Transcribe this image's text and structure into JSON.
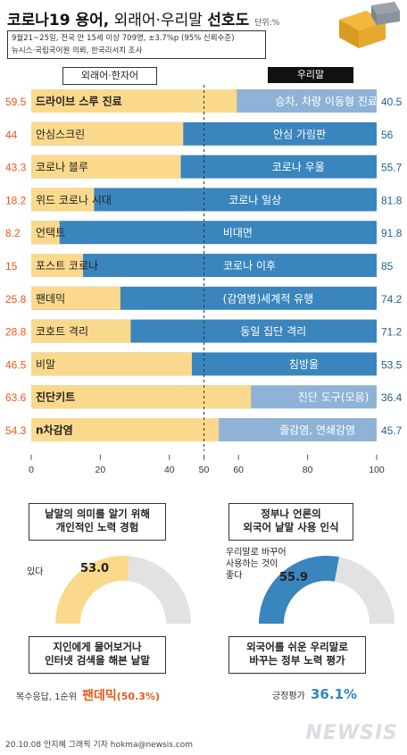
{
  "header": {
    "title_main": "코로나19 용어,",
    "title_sub": " 외래어·우리말 ",
    "title_end": "선호도",
    "unit": "단위:%",
    "info_line1": "9월21~25일, 전국 만 15세 이상 709명, ±3.7%p (95% 신뢰수준)",
    "info_line2": "뉴시스·국립국어원 의뢰, 한국리서치 조사"
  },
  "legend": {
    "left": "외래어·한자어",
    "right": "우리말"
  },
  "colors": {
    "foreign": "#fbd98c",
    "korean": "#3a85bd",
    "korean_light": "#8fb3d6",
    "accent": "#e8591a",
    "donut_bg": "#e2e2e2"
  },
  "chart_data": {
    "type": "bar",
    "orientation": "horizontal-stacked-100",
    "rows": [
      {
        "foreign_term": "드라이브 스루 진료",
        "korean_term": "승차, 차량 이동형 진료",
        "foreign": 59.5,
        "korean": 40.5,
        "winner": "foreign"
      },
      {
        "foreign_term": "안심스크린",
        "korean_term": "안심 가림판",
        "foreign": 44,
        "korean": 56,
        "winner": "korean"
      },
      {
        "foreign_term": "코로나 블루",
        "korean_term": "코로나 우울",
        "foreign": 43.3,
        "korean": 55.7,
        "winner": "korean"
      },
      {
        "foreign_term": "위드 코로나 시대",
        "korean_term": "코로나 일상",
        "foreign": 18.2,
        "korean": 81.8,
        "winner": "korean"
      },
      {
        "foreign_term": "언택트",
        "korean_term": "비대면",
        "foreign": 8.2,
        "korean": 91.8,
        "winner": "korean"
      },
      {
        "foreign_term": "포스트 코로나",
        "korean_term": "코로나 이후",
        "foreign": 15,
        "korean": 85,
        "winner": "korean"
      },
      {
        "foreign_term": "팬데믹",
        "korean_term": "(감염병)세계적 유행",
        "foreign": 25.8,
        "korean": 74.2,
        "winner": "korean"
      },
      {
        "foreign_term": "코호트 격리",
        "korean_term": "동일 집단 격리",
        "foreign": 28.8,
        "korean": 71.2,
        "winner": "korean"
      },
      {
        "foreign_term": "비말",
        "korean_term": "침방울",
        "foreign": 46.5,
        "korean": 53.5,
        "winner": "korean"
      },
      {
        "foreign_term": "진단키트",
        "korean_term": "진단 도구(모음)",
        "foreign": 63.6,
        "korean": 36.4,
        "winner": "foreign"
      },
      {
        "foreign_term": "n차감염",
        "korean_term": "줄감염, 연쇄감염",
        "foreign": 54.3,
        "korean": 45.7,
        "winner": "foreign"
      }
    ],
    "xticks": [
      0,
      20,
      40,
      50,
      60,
      80,
      100
    ],
    "xlim": [
      0,
      100
    ],
    "reference_line": 50
  },
  "survey_left": {
    "question_line1": "낱말의 의미를 알기 위해",
    "question_line2": "개인적인 노력 경험",
    "donut_label": "있다",
    "donut_value": 53.0,
    "donut_value_text": "53.0",
    "result_line1": "지인에게 물어보거나",
    "result_line2": "인터넷 검색을 해본 낱말",
    "footnote": "복수응답, 1순위",
    "highlight": "팬데믹",
    "highlight_pct": "(50.3%)"
  },
  "survey_right": {
    "question_line1": "정부나 언론의",
    "question_line2": "외국어 낱말 사용 인식",
    "donut_label_line1": "우리말로 바꾸어",
    "donut_label_line2": "사용하는 것이",
    "donut_label_line3": "좋다",
    "donut_value": 55.9,
    "donut_value_text": "55.9",
    "result_line1": "외국어를 쉬운 우리말로",
    "result_line2": "바꾸는 정부 노력 평가",
    "footnote": "긍정평가",
    "highlight": "36.1%"
  },
  "credit": "20.10.08 안지혜 그래픽 기자 hokma@newsis.com",
  "watermark": "NEWSIS"
}
